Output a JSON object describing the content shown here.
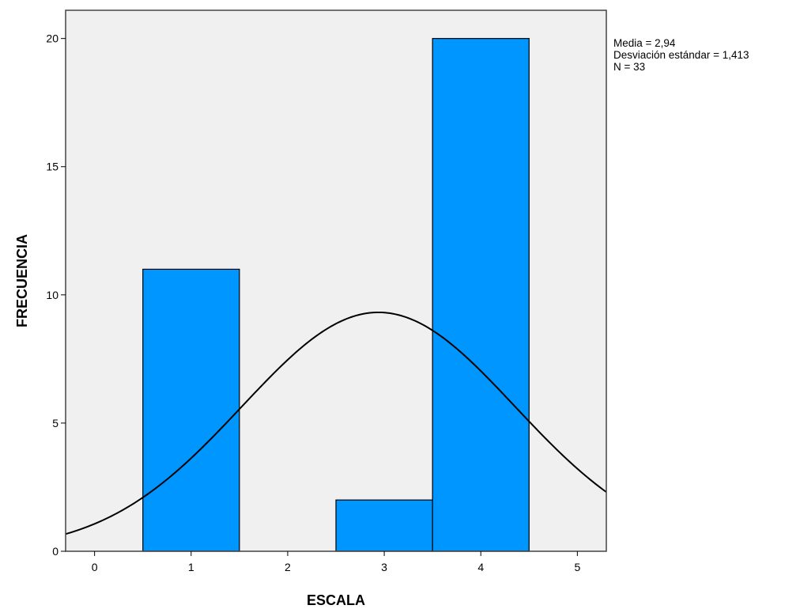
{
  "chart_data": {
    "type": "bar",
    "subtype": "histogram",
    "bins": [
      {
        "x0": 0.5,
        "x1": 1.5,
        "count": 11
      },
      {
        "x0": 2.5,
        "x1": 3.5,
        "count": 2
      },
      {
        "x0": 3.5,
        "x1": 4.5,
        "count": 20
      }
    ],
    "normal_curve": {
      "mean": 2.94,
      "sd": 1.413,
      "n": 33,
      "bin_width": 1
    },
    "xlabel": "ESCALA",
    "ylabel": "FRECUENCIA",
    "xlim": [
      -0.3,
      5.3
    ],
    "ylim": [
      0,
      21.1
    ],
    "xticks": [
      0,
      1,
      2,
      3,
      4,
      5
    ],
    "yticks": [
      0,
      5,
      10,
      15,
      20
    ],
    "grid": false,
    "colors": {
      "bar_fill": "#0096FF",
      "plot_background": "#F0F0F0",
      "curve": "#000000"
    }
  },
  "stats": {
    "mean_label": "Media = 2,94",
    "sd_label": "Desviación estándar = 1,413",
    "n_label": "N = 33"
  }
}
